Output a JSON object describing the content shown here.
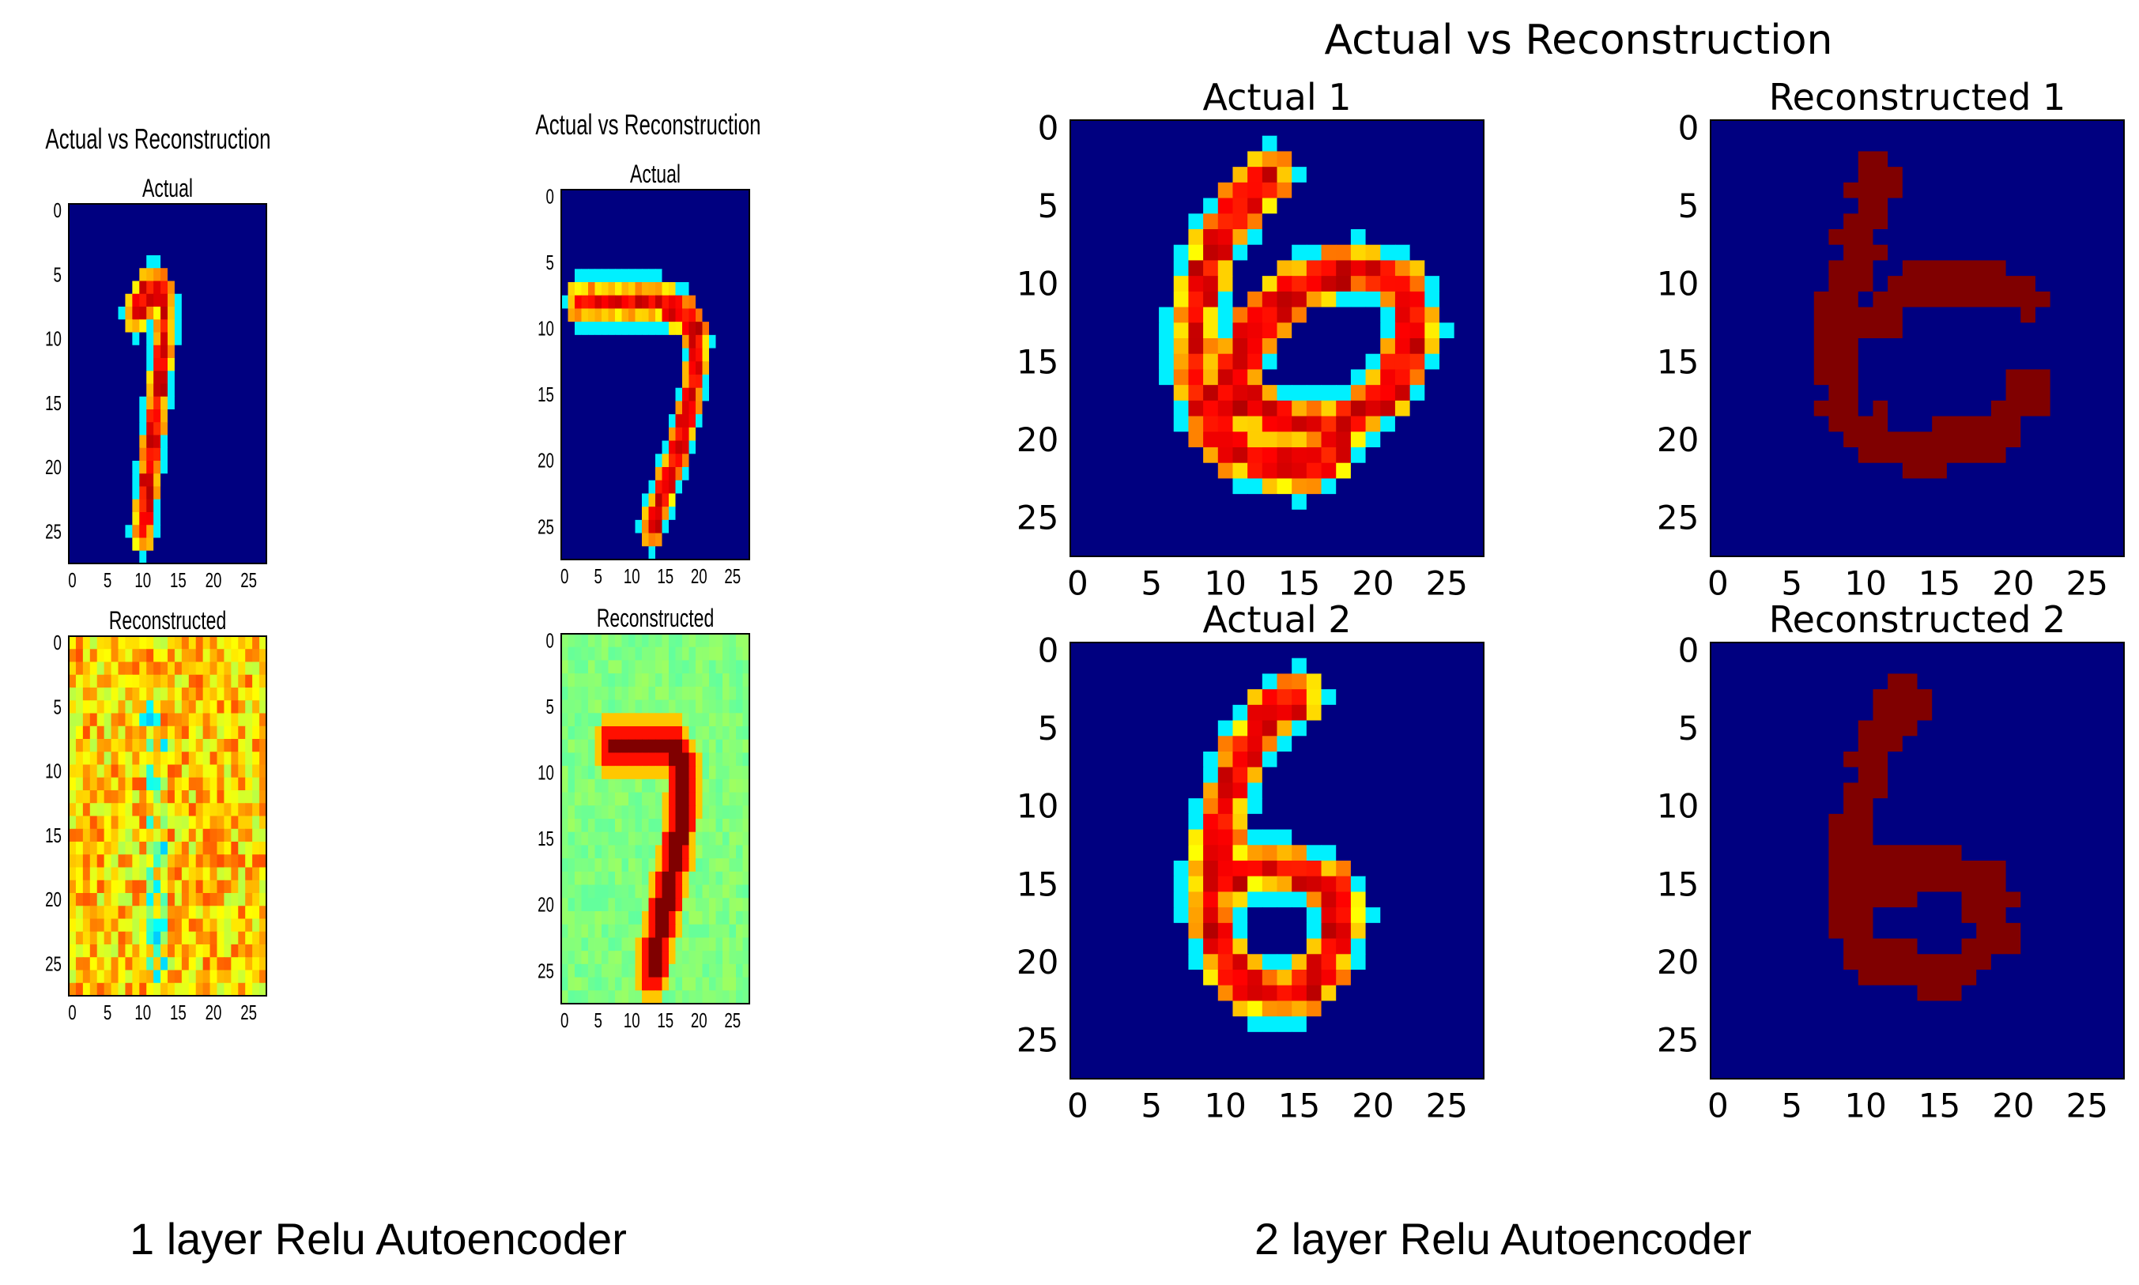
{
  "captions": {
    "left": "1 layer Relu Autoencoder",
    "right": "2 layer Relu Autoencoder"
  },
  "colormap": {
    "name": "jet",
    "stops": [
      "#00008f",
      "#0000ff",
      "#00ffff",
      "#ffff00",
      "#ff0000",
      "#800000"
    ]
  },
  "chart_data": [
    {
      "type": "heatmap",
      "figure": "fig1",
      "suptitle": "Actual vs Reconstruction",
      "title": "Actual",
      "digit": "1",
      "style": "actual",
      "xlim": [
        0,
        27
      ],
      "ylim": [
        27,
        0
      ],
      "xticks": [
        "0",
        "5",
        "10",
        "15",
        "20",
        "25"
      ],
      "yticks": [
        "0",
        "5",
        "10",
        "15",
        "20",
        "25"
      ],
      "strokes": [
        [
          [
            9,
            8
          ],
          [
            10,
            7
          ],
          [
            11,
            6
          ],
          [
            12,
            6
          ],
          [
            13,
            7
          ],
          [
            13,
            10
          ],
          [
            12,
            15
          ],
          [
            11,
            20
          ],
          [
            10,
            25
          ]
        ]
      ]
    },
    {
      "type": "heatmap",
      "figure": "fig1",
      "title": "Reconstructed",
      "digit": "1",
      "style": "noisy",
      "xlim": [
        0,
        27
      ],
      "ylim": [
        27,
        0
      ],
      "xticks": [
        "0",
        "5",
        "10",
        "15",
        "20",
        "25"
      ],
      "yticks": [
        "0",
        "5",
        "10",
        "15",
        "20",
        "25"
      ],
      "strokes": [
        [
          [
            11,
            6
          ],
          [
            12,
            8
          ],
          [
            12,
            12
          ],
          [
            12,
            17
          ],
          [
            12,
            22
          ],
          [
            12,
            25
          ]
        ]
      ]
    },
    {
      "type": "heatmap",
      "figure": "fig2",
      "suptitle": "Actual vs Reconstruction",
      "title": "Actual",
      "digit": "7",
      "style": "actual",
      "xlim": [
        0,
        27
      ],
      "ylim": [
        27,
        0
      ],
      "xticks": [
        "0",
        "5",
        "10",
        "15",
        "20",
        "25"
      ],
      "yticks": [
        "0",
        "5",
        "10",
        "15",
        "20",
        "25"
      ],
      "strokes": [
        [
          [
            2,
            8
          ],
          [
            8,
            8
          ],
          [
            14,
            8
          ],
          [
            18,
            9
          ],
          [
            20,
            11
          ],
          [
            19,
            15
          ],
          [
            17,
            19
          ],
          [
            15,
            22
          ],
          [
            13,
            25
          ]
        ]
      ]
    },
    {
      "type": "heatmap",
      "figure": "fig2",
      "title": "Reconstructed",
      "digit": "7",
      "style": "recon7",
      "xlim": [
        0,
        27
      ],
      "ylim": [
        27,
        0
      ],
      "xticks": [
        "0",
        "5",
        "10",
        "15",
        "20",
        "25"
      ],
      "yticks": [
        "0",
        "5",
        "10",
        "15",
        "20",
        "25"
      ],
      "strokes": [
        [
          [
            7,
            8
          ],
          [
            12,
            8
          ],
          [
            16,
            8
          ],
          [
            18,
            10
          ],
          [
            17,
            15
          ],
          [
            15,
            20
          ],
          [
            13,
            25
          ]
        ]
      ]
    },
    {
      "type": "heatmap",
      "figure": "fig3",
      "suptitle": "Actual vs Reconstruction",
      "title": "Actual 1",
      "digit": "6",
      "style": "actual",
      "xlim": [
        0,
        27
      ],
      "ylim": [
        27,
        0
      ],
      "xticks": [
        "0",
        "5",
        "10",
        "15",
        "20",
        "25"
      ],
      "yticks": [
        "0",
        "5",
        "10",
        "15",
        "20",
        "25"
      ],
      "strokes": [
        [
          [
            13,
            3
          ],
          [
            11,
            5
          ],
          [
            9,
            8
          ],
          [
            8,
            12
          ],
          [
            8,
            16
          ],
          [
            9,
            19
          ],
          [
            11,
            21
          ],
          [
            15,
            22
          ],
          [
            17,
            21
          ],
          [
            18,
            19
          ]
        ],
        [
          [
            10,
            17
          ],
          [
            12,
            13
          ],
          [
            15,
            10
          ],
          [
            19,
            9
          ],
          [
            22,
            10
          ],
          [
            23,
            13
          ],
          [
            21,
            17
          ],
          [
            18,
            19
          ],
          [
            15,
            19
          ],
          [
            12,
            18
          ],
          [
            10,
            17
          ]
        ]
      ]
    },
    {
      "type": "heatmap",
      "figure": "fig3",
      "title": "Reconstructed 1",
      "digit": "6",
      "style": "recon",
      "xlim": [
        0,
        27
      ],
      "ylim": [
        27,
        0
      ],
      "xticks": [
        "0",
        "5",
        "10",
        "15",
        "20",
        "25"
      ],
      "yticks": [
        "0",
        "5",
        "10",
        "15",
        "20",
        "25"
      ],
      "strokes": [
        [
          [
            11,
            3
          ],
          [
            10,
            6
          ],
          [
            9,
            9
          ],
          [
            8,
            13
          ],
          [
            8,
            16
          ],
          [
            9,
            19
          ],
          [
            11,
            20
          ],
          [
            14,
            21
          ],
          [
            17,
            20
          ],
          [
            19,
            19
          ],
          [
            21,
            17
          ]
        ],
        [
          [
            11,
            12
          ],
          [
            13,
            10
          ],
          [
            16,
            10
          ],
          [
            19,
            10
          ],
          [
            21,
            11
          ]
        ]
      ]
    },
    {
      "type": "heatmap",
      "figure": "fig3",
      "title": "Actual 2",
      "digit": "6",
      "style": "actual",
      "xlim": [
        0,
        27
      ],
      "ylim": [
        27,
        0
      ],
      "xticks": [
        "0",
        "5",
        "10",
        "15",
        "20",
        "25"
      ],
      "yticks": [
        "0",
        "5",
        "10",
        "15",
        "20",
        "25"
      ],
      "strokes": [
        [
          [
            15,
            3
          ],
          [
            13,
            4
          ],
          [
            11,
            7
          ],
          [
            10,
            10
          ],
          [
            9,
            14
          ],
          [
            9,
            17
          ],
          [
            10,
            20
          ],
          [
            12,
            22
          ],
          [
            15,
            22
          ],
          [
            17,
            20
          ],
          [
            18,
            17
          ],
          [
            17,
            15
          ],
          [
            14,
            14
          ],
          [
            11,
            14
          ],
          [
            10,
            15
          ]
        ]
      ]
    },
    {
      "type": "heatmap",
      "figure": "fig3",
      "title": "Reconstructed 2",
      "digit": "6",
      "style": "recon",
      "xlim": [
        0,
        27
      ],
      "ylim": [
        27,
        0
      ],
      "xticks": [
        "0",
        "5",
        "10",
        "15",
        "20",
        "25"
      ],
      "yticks": [
        "0",
        "5",
        "10",
        "15",
        "20",
        "25"
      ],
      "strokes": [
        [
          [
            13,
            3
          ],
          [
            11,
            6
          ],
          [
            10,
            9
          ],
          [
            9,
            12
          ],
          [
            9,
            15
          ],
          [
            9,
            18
          ],
          [
            11,
            20
          ],
          [
            14,
            21
          ],
          [
            17,
            20
          ],
          [
            19,
            18
          ],
          [
            18,
            15
          ],
          [
            16,
            14
          ],
          [
            13,
            14
          ],
          [
            11,
            15
          ]
        ]
      ]
    }
  ]
}
